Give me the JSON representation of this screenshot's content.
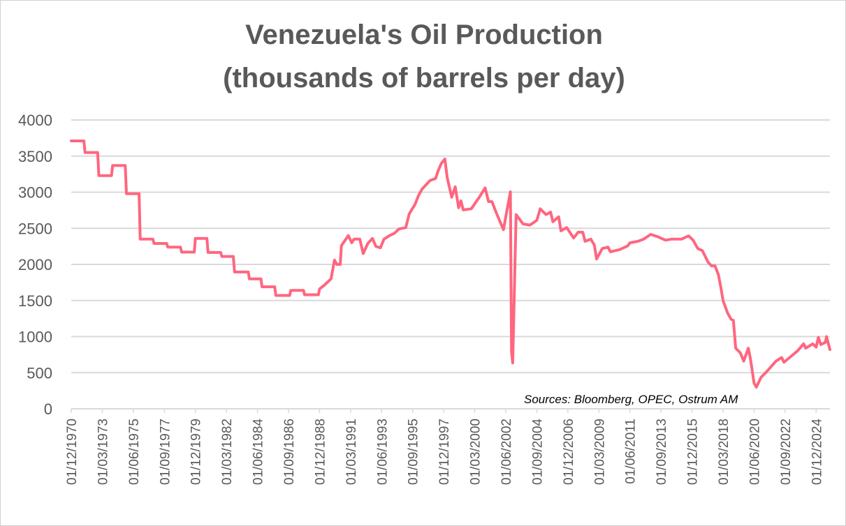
{
  "chart_data": {
    "type": "line",
    "title": [
      "Venezuela's Oil Production",
      "(thousands of barrels per day)"
    ],
    "xlabel": "",
    "ylabel": "",
    "annotation": "Sources: Bloomberg, OPEC, Ostrum AM",
    "ylim": [
      0,
      4000
    ],
    "xlim": [
      "1970-12",
      "2025-12"
    ],
    "grid": "horizontal",
    "legend": "none",
    "line_color": "#FF667F",
    "grid_color": "#D9D9D9",
    "yticks": [
      "0",
      "500",
      "1000",
      "1500",
      "2000",
      "2500",
      "3000",
      "3500",
      "4000"
    ],
    "xticks": [
      "01/12/1970",
      "01/03/1973",
      "01/06/1975",
      "01/09/1977",
      "01/12/1979",
      "01/03/1982",
      "01/06/1984",
      "01/09/1986",
      "01/12/1988",
      "01/03/1991",
      "01/06/1993",
      "01/09/1995",
      "01/12/1997",
      "01/03/2000",
      "01/06/2002",
      "01/09/2004",
      "01/12/2006",
      "01/03/2009",
      "01/06/2011",
      "01/09/2013",
      "01/12/2015",
      "01/03/2018",
      "01/06/2020",
      "01/09/2022",
      "01/12/2024"
    ],
    "series": [
      {
        "points": [
          [
            "1970-12",
            3710
          ],
          [
            "1971-11",
            3710
          ],
          [
            "1971-12",
            3550
          ],
          [
            "1972-11",
            3550
          ],
          [
            "1972-12",
            3230
          ],
          [
            "1973-11",
            3230
          ],
          [
            "1973-12",
            3370
          ],
          [
            "1974-11",
            3370
          ],
          [
            "1974-12",
            2980
          ],
          [
            "1975-11",
            2980
          ],
          [
            "1975-12",
            2350
          ],
          [
            "1976-11",
            2350
          ],
          [
            "1976-12",
            2290
          ],
          [
            "1977-11",
            2290
          ],
          [
            "1977-12",
            2240
          ],
          [
            "1978-11",
            2240
          ],
          [
            "1978-12",
            2170
          ],
          [
            "1979-11",
            2170
          ],
          [
            "1979-12",
            2360
          ],
          [
            "1980-10",
            2360
          ],
          [
            "1980-11",
            2165
          ],
          [
            "1981-10",
            2165
          ],
          [
            "1981-11",
            2110
          ],
          [
            "1982-09",
            2110
          ],
          [
            "1982-10",
            1895
          ],
          [
            "1983-10",
            1895
          ],
          [
            "1983-11",
            1800
          ],
          [
            "1984-09",
            1800
          ],
          [
            "1984-10",
            1690
          ],
          [
            "1985-09",
            1690
          ],
          [
            "1985-10",
            1570
          ],
          [
            "1986-10",
            1570
          ],
          [
            "1986-11",
            1640
          ],
          [
            "1987-10",
            1640
          ],
          [
            "1987-11",
            1580
          ],
          [
            "1988-11",
            1580
          ],
          [
            "1988-12",
            1660
          ],
          [
            "1989-04",
            1710
          ],
          [
            "1989-10",
            1800
          ],
          [
            "1990-01",
            2060
          ],
          [
            "1990-03",
            2000
          ],
          [
            "1990-06",
            2000
          ],
          [
            "1990-07",
            2260
          ],
          [
            "1991-01",
            2400
          ],
          [
            "1991-04",
            2300
          ],
          [
            "1991-06",
            2350
          ],
          [
            "1991-11",
            2350
          ],
          [
            "1992-02",
            2150
          ],
          [
            "1992-06",
            2290
          ],
          [
            "1992-10",
            2360
          ],
          [
            "1993-01",
            2250
          ],
          [
            "1993-05",
            2230
          ],
          [
            "1993-08",
            2350
          ],
          [
            "1994-01",
            2400
          ],
          [
            "1994-05",
            2430
          ],
          [
            "1994-09",
            2490
          ],
          [
            "1995-03",
            2510
          ],
          [
            "1995-06",
            2700
          ],
          [
            "1995-11",
            2830
          ],
          [
            "1996-02",
            2950
          ],
          [
            "1996-05",
            3040
          ],
          [
            "1996-12",
            3160
          ],
          [
            "1997-05",
            3190
          ],
          [
            "1997-07",
            3290
          ],
          [
            "1997-10",
            3400
          ],
          [
            "1998-01",
            3460
          ],
          [
            "1998-03",
            3205
          ],
          [
            "1998-07",
            2930
          ],
          [
            "1998-10",
            3075
          ],
          [
            "1999-01",
            2785
          ],
          [
            "1999-03",
            2880
          ],
          [
            "1999-05",
            2755
          ],
          [
            "1999-12",
            2770
          ],
          [
            "2000-07",
            2930
          ],
          [
            "2000-12",
            3060
          ],
          [
            "2001-03",
            2870
          ],
          [
            "2001-06",
            2870
          ],
          [
            "2001-10",
            2705
          ],
          [
            "2002-04",
            2480
          ],
          [
            "2002-06",
            2660
          ],
          [
            "2002-10",
            3005
          ],
          [
            "2002-11",
            790
          ],
          [
            "2002-12",
            635
          ],
          [
            "2003-03",
            2690
          ],
          [
            "2003-09",
            2560
          ],
          [
            "2004-03",
            2545
          ],
          [
            "2004-09",
            2610
          ],
          [
            "2004-12",
            2770
          ],
          [
            "2005-05",
            2690
          ],
          [
            "2005-09",
            2725
          ],
          [
            "2005-11",
            2590
          ],
          [
            "2006-04",
            2660
          ],
          [
            "2006-06",
            2465
          ],
          [
            "2006-11",
            2510
          ],
          [
            "2007-05",
            2365
          ],
          [
            "2007-09",
            2445
          ],
          [
            "2008-01",
            2445
          ],
          [
            "2008-03",
            2320
          ],
          [
            "2008-08",
            2350
          ],
          [
            "2008-11",
            2270
          ],
          [
            "2009-01",
            2075
          ],
          [
            "2009-06",
            2220
          ],
          [
            "2009-11",
            2240
          ],
          [
            "2010-01",
            2175
          ],
          [
            "2010-09",
            2205
          ],
          [
            "2011-04",
            2255
          ],
          [
            "2011-06",
            2300
          ],
          [
            "2012-01",
            2320
          ],
          [
            "2012-06",
            2350
          ],
          [
            "2012-12",
            2415
          ],
          [
            "2013-06",
            2385
          ],
          [
            "2014-01",
            2335
          ],
          [
            "2014-06",
            2350
          ],
          [
            "2015-03",
            2350
          ],
          [
            "2015-09",
            2395
          ],
          [
            "2016-01",
            2335
          ],
          [
            "2016-05",
            2220
          ],
          [
            "2016-09",
            2190
          ],
          [
            "2017-02",
            2030
          ],
          [
            "2017-05",
            1980
          ],
          [
            "2017-08",
            1980
          ],
          [
            "2017-11",
            1855
          ],
          [
            "2018-01",
            1690
          ],
          [
            "2018-03",
            1500
          ],
          [
            "2018-07",
            1325
          ],
          [
            "2018-10",
            1240
          ],
          [
            "2018-12",
            1225
          ],
          [
            "2019-02",
            840
          ],
          [
            "2019-06",
            775
          ],
          [
            "2019-09",
            660
          ],
          [
            "2020-01",
            840
          ],
          [
            "2020-03",
            675
          ],
          [
            "2020-06",
            355
          ],
          [
            "2020-08",
            300
          ],
          [
            "2020-12",
            435
          ],
          [
            "2021-05",
            515
          ],
          [
            "2022-01",
            660
          ],
          [
            "2022-06",
            710
          ],
          [
            "2022-08",
            645
          ],
          [
            "2023-02",
            725
          ],
          [
            "2023-08",
            805
          ],
          [
            "2024-01",
            900
          ],
          [
            "2024-03",
            840
          ],
          [
            "2024-09",
            900
          ],
          [
            "2024-12",
            855
          ],
          [
            "2025-02",
            990
          ],
          [
            "2025-04",
            890
          ],
          [
            "2025-08",
            920
          ],
          [
            "2025-09",
            1000
          ],
          [
            "2025-12",
            820
          ]
        ]
      }
    ]
  }
}
